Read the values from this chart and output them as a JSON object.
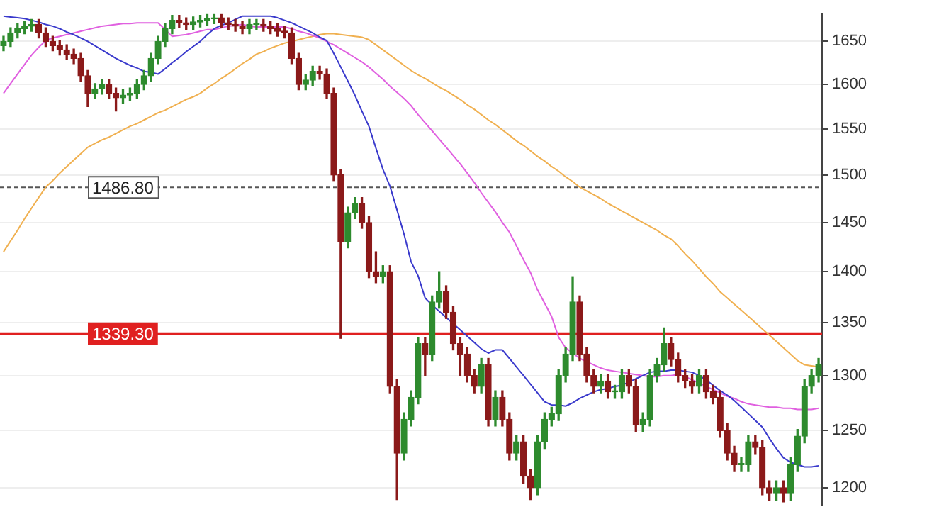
{
  "chart_data": {
    "type": "candlestick",
    "categories": [
      null,
      null,
      null,
      null,
      null,
      null,
      null,
      null,
      null,
      null,
      null,
      null,
      null,
      null,
      null,
      null,
      null,
      null,
      null,
      null,
      null,
      null,
      null,
      null,
      null,
      null,
      null,
      null,
      null,
      null,
      null,
      null,
      null,
      null,
      null,
      null,
      null,
      null,
      null,
      null,
      null,
      null,
      null,
      null,
      null,
      null,
      null,
      null,
      null,
      null,
      null,
      null,
      null,
      null,
      null,
      null,
      null,
      null,
      null,
      null,
      null,
      null,
      null,
      null,
      null,
      null,
      null,
      null,
      null,
      null,
      null,
      null,
      null,
      null,
      null,
      null,
      null,
      null,
      null,
      null,
      null,
      null,
      null,
      null,
      null,
      null,
      null,
      null,
      null,
      null,
      null,
      null,
      null,
      null,
      null,
      null,
      null,
      null,
      null,
      null,
      null,
      null,
      null,
      null,
      null,
      null,
      null,
      null,
      null,
      null,
      null,
      null,
      null,
      null,
      null,
      null,
      null
    ],
    "ohlc": [
      [
        1645,
        1656,
        1639,
        1650
      ],
      [
        1650,
        1666,
        1644,
        1660
      ],
      [
        1660,
        1671,
        1654,
        1665
      ],
      [
        1665,
        1674,
        1659,
        1668
      ],
      [
        1668,
        1676,
        1662,
        1670
      ],
      [
        1670,
        1676,
        1654,
        1660
      ],
      [
        1660,
        1666,
        1644,
        1650
      ],
      [
        1650,
        1656,
        1639,
        1645
      ],
      [
        1645,
        1651,
        1634,
        1640
      ],
      [
        1640,
        1646,
        1629,
        1635
      ],
      [
        1635,
        1641,
        1624,
        1630
      ],
      [
        1630,
        1636,
        1604,
        1610
      ],
      [
        1610,
        1616,
        1575,
        1590
      ],
      [
        1590,
        1601,
        1584,
        1595
      ],
      [
        1595,
        1606,
        1589,
        1600
      ],
      [
        1600,
        1606,
        1584,
        1590
      ],
      [
        1590,
        1596,
        1570,
        1585
      ],
      [
        1585,
        1594,
        1579,
        1588
      ],
      [
        1588,
        1596,
        1582,
        1590
      ],
      [
        1590,
        1606,
        1584,
        1600
      ],
      [
        1600,
        1616,
        1594,
        1610
      ],
      [
        1610,
        1636,
        1604,
        1630
      ],
      [
        1630,
        1656,
        1624,
        1650
      ],
      [
        1650,
        1671,
        1644,
        1665
      ],
      [
        1665,
        1681,
        1659,
        1675
      ],
      [
        1675,
        1681,
        1666,
        1672
      ],
      [
        1672,
        1678,
        1664,
        1670
      ],
      [
        1670,
        1679,
        1664,
        1673
      ],
      [
        1673,
        1681,
        1667,
        1675
      ],
      [
        1675,
        1682,
        1669,
        1677
      ],
      [
        1677,
        1682,
        1671,
        1678
      ],
      [
        1678,
        1682,
        1666,
        1672
      ],
      [
        1672,
        1678,
        1664,
        1670
      ],
      [
        1670,
        1676,
        1662,
        1668
      ],
      [
        1668,
        1674,
        1659,
        1665
      ],
      [
        1665,
        1676,
        1659,
        1670
      ],
      [
        1670,
        1676,
        1664,
        1671
      ],
      [
        1670,
        1676,
        1662,
        1668
      ],
      [
        1668,
        1674,
        1659,
        1665
      ],
      [
        1665,
        1671,
        1656,
        1662
      ],
      [
        1662,
        1668,
        1654,
        1660
      ],
      [
        1660,
        1666,
        1624,
        1630
      ],
      [
        1630,
        1636,
        1594,
        1600
      ],
      [
        1600,
        1611,
        1594,
        1605
      ],
      [
        1605,
        1621,
        1599,
        1615
      ],
      [
        1615,
        1621,
        1606,
        1612
      ],
      [
        1612,
        1618,
        1584,
        1590
      ],
      [
        1590,
        1596,
        1494,
        1500
      ],
      [
        1500,
        1506,
        1335,
        1430
      ],
      [
        1430,
        1466,
        1424,
        1460
      ],
      [
        1460,
        1476,
        1454,
        1470
      ],
      [
        1470,
        1476,
        1444,
        1450
      ],
      [
        1450,
        1456,
        1394,
        1400
      ],
      [
        1400,
        1420,
        1389,
        1395
      ],
      [
        1395,
        1406,
        1389,
        1400
      ],
      [
        1400,
        1406,
        1284,
        1290
      ],
      [
        1290,
        1296,
        1190,
        1230
      ],
      [
        1230,
        1266,
        1224,
        1260
      ],
      [
        1260,
        1286,
        1254,
        1280
      ],
      [
        1280,
        1336,
        1274,
        1330
      ],
      [
        1330,
        1336,
        1300,
        1320
      ],
      [
        1320,
        1376,
        1314,
        1370
      ],
      [
        1370,
        1400,
        1364,
        1380
      ],
      [
        1380,
        1386,
        1354,
        1360
      ],
      [
        1360,
        1366,
        1324,
        1330
      ],
      [
        1330,
        1336,
        1300,
        1320
      ],
      [
        1320,
        1326,
        1294,
        1300
      ],
      [
        1300,
        1306,
        1284,
        1290
      ],
      [
        1290,
        1316,
        1284,
        1310
      ],
      [
        1310,
        1316,
        1254,
        1260
      ],
      [
        1260,
        1286,
        1254,
        1280
      ],
      [
        1280,
        1286,
        1254,
        1260
      ],
      [
        1260,
        1266,
        1224,
        1230
      ],
      [
        1230,
        1246,
        1224,
        1240
      ],
      [
        1240,
        1246,
        1204,
        1210
      ],
      [
        1210,
        1216,
        1190,
        1200
      ],
      [
        1200,
        1246,
        1194,
        1240
      ],
      [
        1240,
        1266,
        1234,
        1260
      ],
      [
        1260,
        1271,
        1254,
        1265
      ],
      [
        1265,
        1306,
        1259,
        1300
      ],
      [
        1300,
        1326,
        1294,
        1320
      ],
      [
        1320,
        1395,
        1314,
        1370
      ],
      [
        1370,
        1376,
        1314,
        1320
      ],
      [
        1320,
        1326,
        1294,
        1300
      ],
      [
        1300,
        1306,
        1284,
        1290
      ],
      [
        1290,
        1301,
        1284,
        1295
      ],
      [
        1295,
        1301,
        1279,
        1285
      ],
      [
        1285,
        1291,
        1279,
        1286
      ],
      [
        1285,
        1306,
        1279,
        1300
      ],
      [
        1300,
        1306,
        1284,
        1290
      ],
      [
        1290,
        1296,
        1249,
        1255
      ],
      [
        1255,
        1266,
        1249,
        1260
      ],
      [
        1260,
        1306,
        1254,
        1300
      ],
      [
        1300,
        1316,
        1294,
        1310
      ],
      [
        1310,
        1345,
        1304,
        1330
      ],
      [
        1330,
        1336,
        1309,
        1315
      ],
      [
        1315,
        1321,
        1294,
        1300
      ],
      [
        1300,
        1306,
        1289,
        1295
      ],
      [
        1295,
        1301,
        1284,
        1290
      ],
      [
        1290,
        1306,
        1284,
        1300
      ],
      [
        1300,
        1306,
        1279,
        1285
      ],
      [
        1285,
        1291,
        1274,
        1280
      ],
      [
        1280,
        1286,
        1244,
        1250
      ],
      [
        1250,
        1256,
        1224,
        1230
      ],
      [
        1230,
        1236,
        1214,
        1220
      ],
      [
        1220,
        1226,
        1214,
        1221
      ],
      [
        1220,
        1246,
        1214,
        1240
      ],
      [
        1240,
        1246,
        1229,
        1235
      ],
      [
        1235,
        1241,
        1194,
        1200
      ],
      [
        1200,
        1206,
        1189,
        1195
      ],
      [
        1195,
        1206,
        1189,
        1200
      ],
      [
        1200,
        1206,
        1188,
        1195
      ],
      [
        1195,
        1226,
        1189,
        1220
      ],
      [
        1220,
        1251,
        1214,
        1245
      ],
      [
        1245,
        1296,
        1239,
        1290
      ],
      [
        1290,
        1306,
        1284,
        1300
      ],
      [
        1300,
        1316,
        1294,
        1310
      ]
    ],
    "colors": [
      "#2e8b2e",
      "#2e8b2e",
      "#2e8b2e",
      "#2e8b2e",
      "#2e8b2e",
      "#8b1a1a",
      "#8b1a1a",
      "#8b1a1a",
      "#8b1a1a",
      "#8b1a1a",
      "#8b1a1a",
      "#8b1a1a",
      "#8b1a1a",
      "#2e8b2e",
      "#2e8b2e",
      "#8b1a1a",
      "#8b1a1a",
      "#2e8b2e",
      "#2e8b2e",
      "#2e8b2e",
      "#2e8b2e",
      "#2e8b2e",
      "#2e8b2e",
      "#2e8b2e",
      "#2e8b2e",
      "#8b1a1a",
      "#8b1a1a",
      "#2e8b2e",
      "#2e8b2e",
      "#2e8b2e",
      "#2e8b2e",
      "#8b1a1a",
      "#8b1a1a",
      "#8b1a1a",
      "#8b1a1a",
      "#2e8b2e",
      "#2e8b2e",
      "#8b1a1a",
      "#8b1a1a",
      "#8b1a1a",
      "#8b1a1a",
      "#8b1a1a",
      "#8b1a1a",
      "#2e8b2e",
      "#2e8b2e",
      "#8b1a1a",
      "#8b1a1a",
      "#8b1a1a",
      "#8b1a1a",
      "#2e8b2e",
      "#2e8b2e",
      "#8b1a1a",
      "#8b1a1a",
      "#8b1a1a",
      "#2e8b2e",
      "#8b1a1a",
      "#8b1a1a",
      "#2e8b2e",
      "#2e8b2e",
      "#2e8b2e",
      "#8b1a1a",
      "#2e8b2e",
      "#2e8b2e",
      "#8b1a1a",
      "#8b1a1a",
      "#8b1a1a",
      "#8b1a1a",
      "#8b1a1a",
      "#2e8b2e",
      "#8b1a1a",
      "#2e8b2e",
      "#8b1a1a",
      "#8b1a1a",
      "#2e8b2e",
      "#8b1a1a",
      "#8b1a1a",
      "#2e8b2e",
      "#2e8b2e",
      "#2e8b2e",
      "#2e8b2e",
      "#2e8b2e",
      "#2e8b2e",
      "#8b1a1a",
      "#8b1a1a",
      "#8b1a1a",
      "#2e8b2e",
      "#8b1a1a",
      "#2e8b2e",
      "#2e8b2e",
      "#8b1a1a",
      "#8b1a1a",
      "#2e8b2e",
      "#2e8b2e",
      "#2e8b2e",
      "#2e8b2e",
      "#8b1a1a",
      "#8b1a1a",
      "#8b1a1a",
      "#8b1a1a",
      "#2e8b2e",
      "#8b1a1a",
      "#8b1a1a",
      "#8b1a1a",
      "#8b1a1a",
      "#8b1a1a",
      "#2e8b2e",
      "#2e8b2e",
      "#8b1a1a",
      "#8b1a1a",
      "#8b1a1a",
      "#2e8b2e",
      "#8b1a1a",
      "#2e8b2e",
      "#2e8b2e",
      "#2e8b2e",
      "#2e8b2e",
      "#2e8b2e"
    ],
    "series": [
      {
        "type": "line",
        "color": "#3a3acc",
        "values": [
          1680,
          1679,
          1678,
          1677,
          1675,
          1673,
          1670,
          1668,
          1665,
          1661,
          1658,
          1654,
          1650,
          1645,
          1640,
          1635,
          1630,
          1626,
          1622,
          1619,
          1615,
          1614,
          1612,
          1618,
          1625,
          1631,
          1638,
          1644,
          1650,
          1658,
          1665,
          1669,
          1672,
          1676,
          1680,
          1680,
          1680,
          1680,
          1680,
          1678,
          1675,
          1672,
          1668,
          1664,
          1660,
          1655,
          1651,
          1636,
          1620,
          1604,
          1588,
          1570,
          1553,
          1529,
          1506,
          1488,
          1463,
          1438,
          1410,
          1396,
          1374,
          1367,
          1361,
          1355,
          1349,
          1343,
          1337,
          1331,
          1325,
          1321,
          1324,
          1324,
          1316,
          1308,
          1300,
          1292,
          1284,
          1276,
          1273,
          1273,
          1272,
          1275,
          1279,
          1282,
          1285,
          1287,
          1288,
          1290,
          1291,
          1294,
          1297,
          1300,
          1303,
          1304,
          1304,
          1305,
          1305,
          1304,
          1303,
          1300,
          1296,
          1291,
          1286,
          1282,
          1277,
          1271,
          1265,
          1259,
          1253,
          1243,
          1234,
          1226,
          1222,
          1220,
          1218,
          1218,
          1219
        ]
      },
      {
        "type": "line",
        "color": "#e060e0",
        "values": [
          1590,
          1601,
          1612,
          1623,
          1634,
          1643,
          1651,
          1654,
          1656,
          1658,
          1660,
          1662,
          1664,
          1666,
          1668,
          1669,
          1670,
          1671,
          1671,
          1672,
          1672,
          1672,
          1672,
          1664,
          1656,
          1657,
          1658,
          1660,
          1662,
          1664,
          1664,
          1666,
          1668,
          1669,
          1670,
          1668,
          1667,
          1667,
          1667,
          1667,
          1667,
          1665,
          1662,
          1660,
          1657,
          1654,
          1650,
          1646,
          1641,
          1636,
          1631,
          1626,
          1620,
          1613,
          1606,
          1598,
          1591,
          1584,
          1576,
          1566,
          1557,
          1548,
          1539,
          1530,
          1521,
          1512,
          1502,
          1492,
          1481,
          1471,
          1461,
          1450,
          1440,
          1426,
          1412,
          1399,
          1382,
          1369,
          1356,
          1336,
          1326,
          1321,
          1316,
          1313,
          1310,
          1307,
          1305,
          1304,
          1303,
          1302,
          1301,
          1300,
          1299,
          1299,
          1300,
          1300,
          1301,
          1299,
          1296,
          1293,
          1290,
          1287,
          1284,
          1281,
          1279,
          1276,
          1274,
          1273,
          1272,
          1271,
          1271,
          1270,
          1270,
          1269,
          1269,
          1269,
          1270
        ]
      },
      {
        "type": "line",
        "color": "#f0b050",
        "values": [
          1420,
          1431,
          1442,
          1454,
          1465,
          1476,
          1487,
          1494,
          1502,
          1509,
          1516,
          1523,
          1530,
          1534,
          1538,
          1541,
          1545,
          1549,
          1553,
          1556,
          1560,
          1564,
          1568,
          1571,
          1575,
          1579,
          1583,
          1586,
          1590,
          1596,
          1601,
          1607,
          1612,
          1618,
          1624,
          1629,
          1635,
          1638,
          1642,
          1645,
          1648,
          1650,
          1652,
          1654,
          1656,
          1658,
          1659,
          1659,
          1658,
          1657,
          1656,
          1655,
          1652,
          1646,
          1640,
          1634,
          1628,
          1622,
          1616,
          1611,
          1607,
          1602,
          1597,
          1593,
          1588,
          1583,
          1577,
          1572,
          1566,
          1560,
          1555,
          1549,
          1543,
          1537,
          1532,
          1526,
          1520,
          1515,
          1509,
          1504,
          1498,
          1493,
          1487,
          1483,
          1479,
          1475,
          1470,
          1466,
          1462,
          1458,
          1454,
          1450,
          1446,
          1442,
          1437,
          1433,
          1426,
          1418,
          1411,
          1403,
          1395,
          1388,
          1380,
          1374,
          1368,
          1362,
          1356,
          1350,
          1344,
          1338,
          1332,
          1326,
          1320,
          1314,
          1310,
          1309,
          1308
        ]
      }
    ],
    "ylim": [
      1185,
      1683
    ],
    "yticks": [
      1200,
      1250,
      1300,
      1350,
      1400,
      1450,
      1500,
      1550,
      1600,
      1650
    ],
    "log": "y",
    "grid": "y",
    "tick_labels": "y",
    "marker": "none",
    "ref_lines": [
      {
        "axis": "y",
        "value": 1486.8,
        "label": "1486.80",
        "color": "#555555",
        "line_style": "dashed"
      },
      {
        "axis": "y",
        "value": 1339.3,
        "label": "1339.30",
        "color": "#e02020",
        "line_style": "solid"
      }
    ]
  }
}
